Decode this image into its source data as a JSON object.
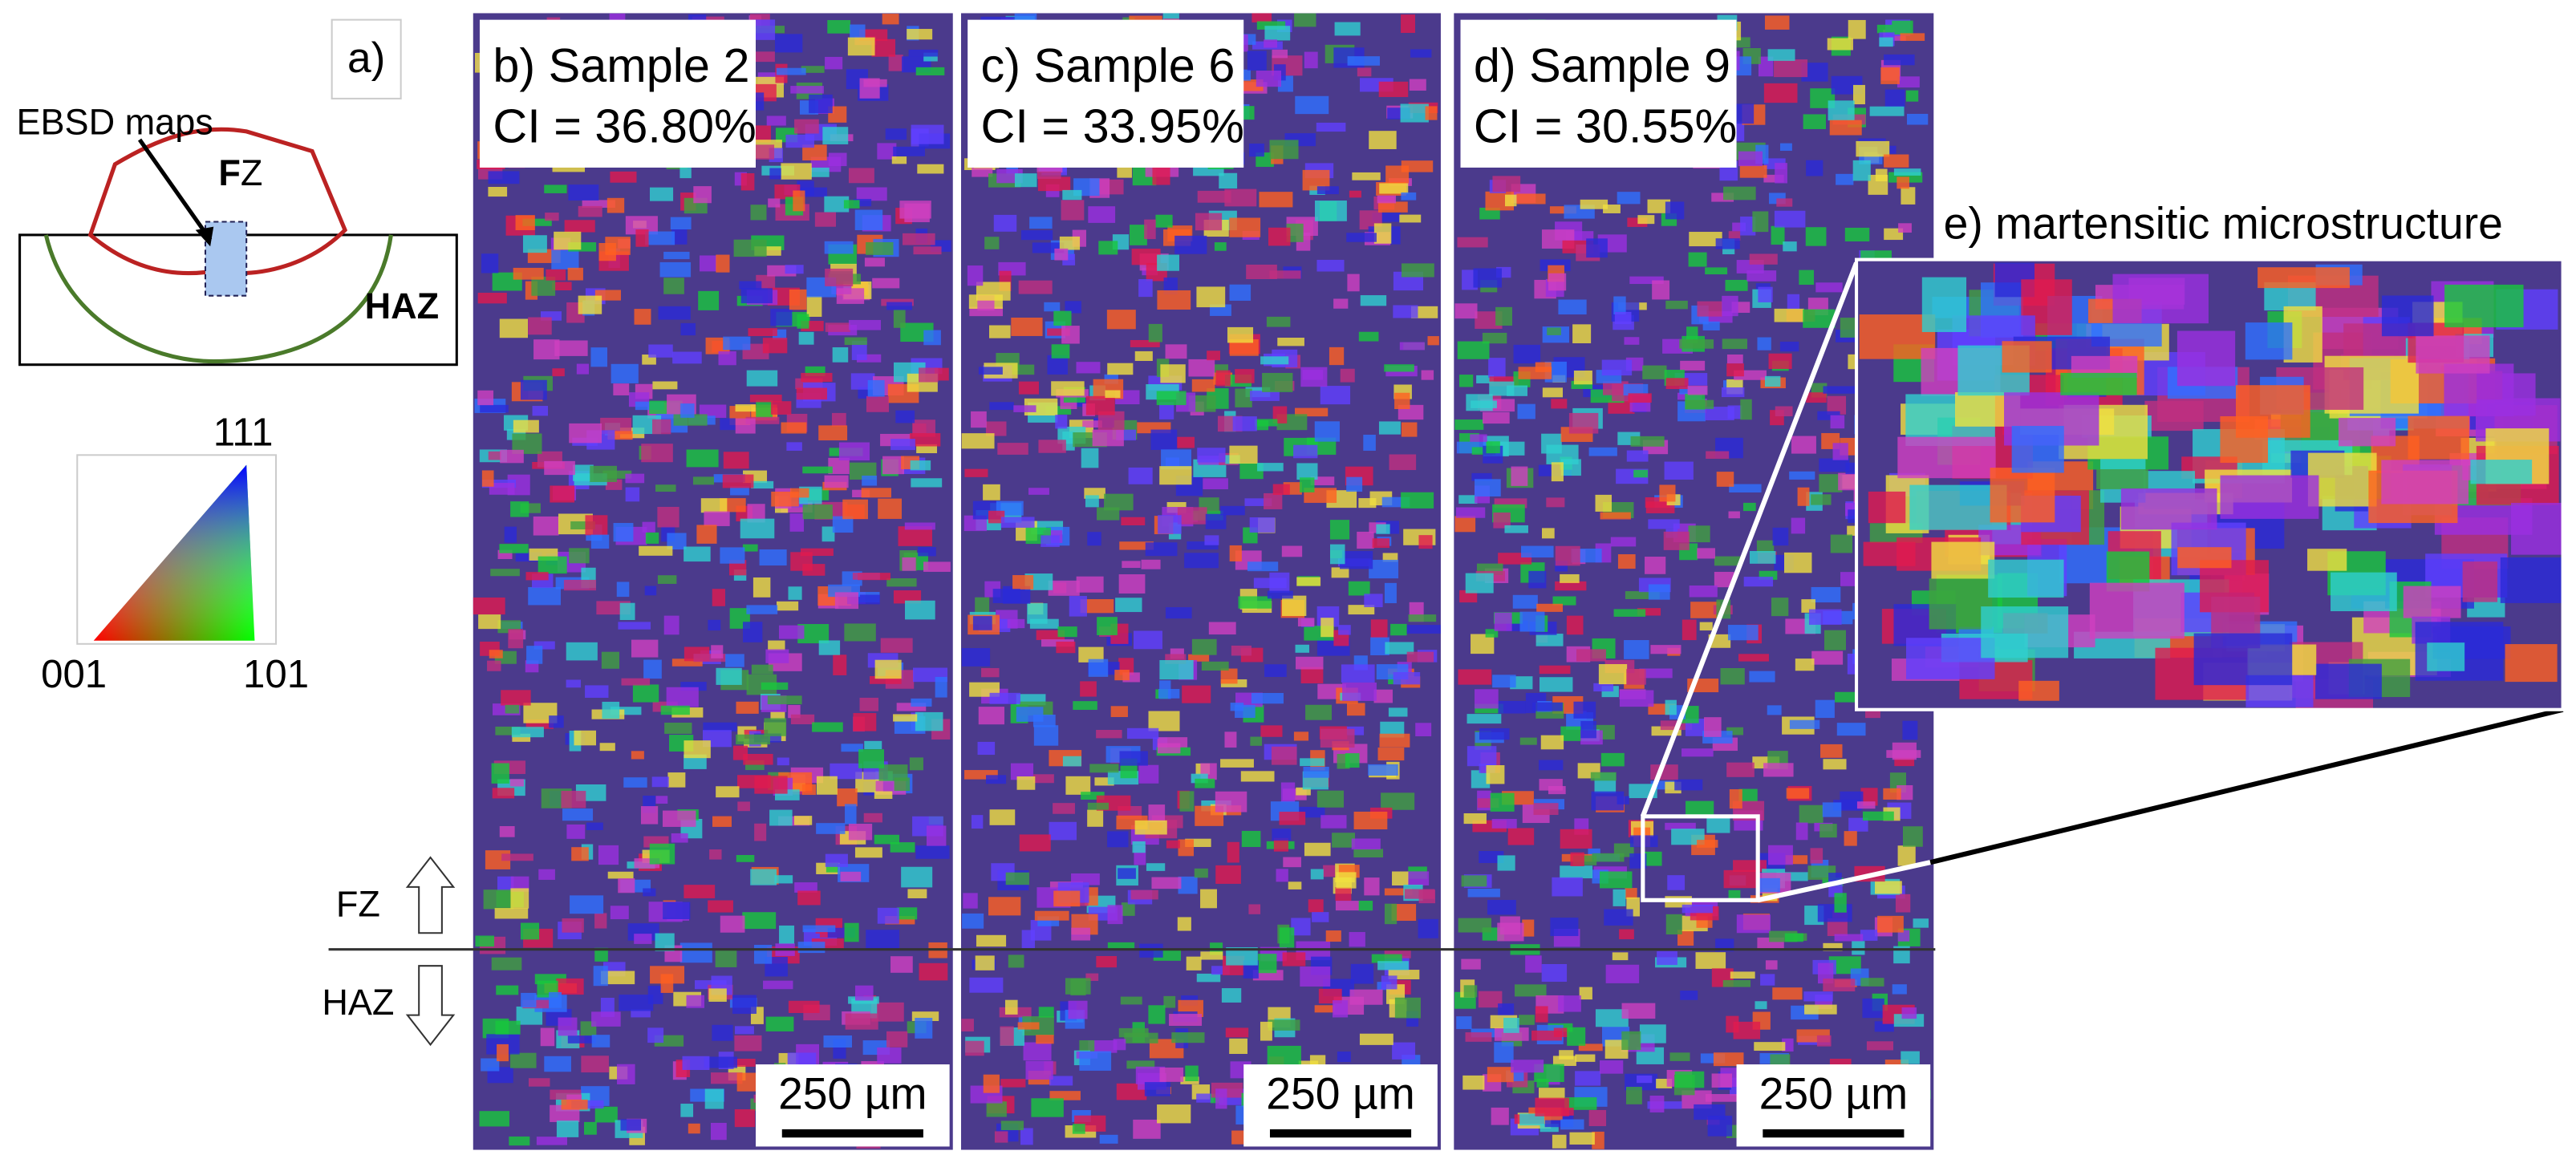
{
  "panel_a": {
    "label": "a)",
    "ebsd_label": "EBSD maps",
    "fz_bold": "F",
    "fz_rest": "Z",
    "haz": "HAZ",
    "ipf_111": "111",
    "ipf_001": "001",
    "ipf_101": "101",
    "zone_fz": "FZ",
    "zone_haz": "HAZ"
  },
  "maps": [
    {
      "title": "b) Sample 2",
      "ci": "CI = 36.80%",
      "scale": "250 µm"
    },
    {
      "title": "c) Sample 6",
      "ci": "CI = 33.95%",
      "scale": "250 µm"
    },
    {
      "title": "d) Sample 9",
      "ci": "CI = 30.55%",
      "scale": "250 µm"
    }
  ],
  "inset": {
    "title": "e) martensitic microstructure"
  }
}
